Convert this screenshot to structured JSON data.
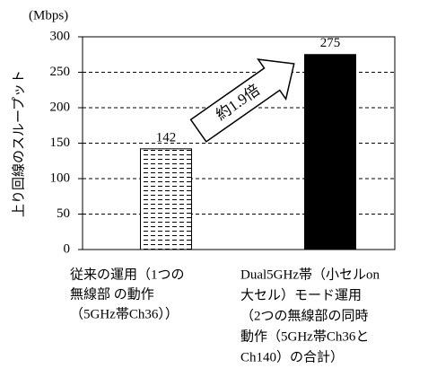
{
  "chart_data": {
    "type": "bar",
    "unit": "(Mbps)",
    "ylabel": "上り回線のスループット",
    "annotation": "約1.9倍",
    "categories": [
      [
        "従来の運用（1つの",
        "無線部 の動作",
        "（5GHz帯Ch36））"
      ],
      [
        "Dual5GHz帯（小セルon",
        "大セル）モード運用",
        "（2つの無線部の同時",
        "動作（5GHz帯Ch36と",
        "Ch140）の合計）"
      ]
    ],
    "values": [
      142,
      275
    ],
    "colors": [
      "#ffffff",
      "#000000"
    ],
    "hatch": [
      true,
      false
    ],
    "ylim": [
      0,
      300
    ],
    "yticks": [
      0,
      50,
      100,
      150,
      200,
      250,
      300
    ],
    "grid": true
  }
}
